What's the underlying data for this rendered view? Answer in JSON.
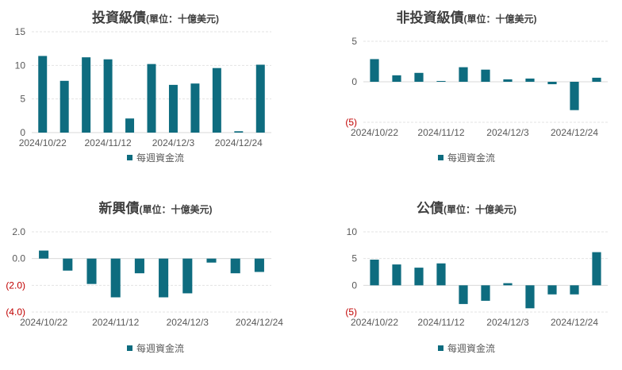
{
  "chart_data": [
    {
      "type": "bar",
      "title": "投資級債",
      "subtitle": "(單位：十億美元)",
      "legend": "每週資金流",
      "color": "#0e6c7f",
      "ylim": [
        0,
        15
      ],
      "yticks": [
        {
          "v": 15,
          "label": "15"
        },
        {
          "v": 10,
          "label": "10"
        },
        {
          "v": 5,
          "label": "5"
        },
        {
          "v": 0,
          "label": "0"
        }
      ],
      "xtick_labels": [
        "2024/10/22",
        "2024/11/12",
        "2024/12/3",
        "2024/12/24"
      ],
      "xtick_positions": [
        0,
        3,
        6,
        9
      ],
      "values": [
        11.4,
        7.7,
        11.2,
        10.9,
        2.1,
        10.2,
        7.1,
        7.3,
        9.6,
        0.2,
        10.1
      ]
    },
    {
      "type": "bar",
      "title": "非投資級債",
      "subtitle": "(單位：十億美元)",
      "legend": "每週資金流",
      "color": "#0e6c7f",
      "ylim": [
        -5,
        5
      ],
      "yticks": [
        {
          "v": 5,
          "label": "5"
        },
        {
          "v": 0,
          "label": "0"
        },
        {
          "v": -5,
          "label": "(5)"
        }
      ],
      "xtick_labels": [
        "2024/10/22",
        "2024/11/12",
        "2024/12/3",
        "2024/12/24"
      ],
      "xtick_positions": [
        0,
        3,
        6,
        9
      ],
      "values": [
        2.8,
        0.8,
        1.1,
        0.1,
        1.8,
        1.5,
        0.3,
        0.4,
        -0.3,
        -3.5,
        0.5
      ]
    },
    {
      "type": "bar",
      "title": "新興債",
      "subtitle": "(單位：十億美元)",
      "legend": "每週資金流",
      "color": "#0e6c7f",
      "ylim": [
        -4,
        2
      ],
      "yticks": [
        {
          "v": 2,
          "label": "2.0"
        },
        {
          "v": 0,
          "label": "0.0"
        },
        {
          "v": -2,
          "label": "(2.0)"
        },
        {
          "v": -4,
          "label": "(4.0)"
        }
      ],
      "xtick_labels": [
        "2024/10/22",
        "2024/11/12",
        "2024/12/3",
        "2024/12/24"
      ],
      "xtick_positions": [
        0,
        3,
        6,
        9
      ],
      "values": [
        0.6,
        -0.9,
        -1.9,
        -2.9,
        -1.1,
        -2.9,
        -2.6,
        -0.3,
        -1.1,
        -1.0
      ]
    },
    {
      "type": "bar",
      "title": "公債",
      "subtitle": "(單位：十億美元)",
      "legend": "每週資金流",
      "color": "#0e6c7f",
      "ylim": [
        -5,
        10
      ],
      "yticks": [
        {
          "v": 10,
          "label": "10"
        },
        {
          "v": 5,
          "label": "5"
        },
        {
          "v": 0,
          "label": "0"
        },
        {
          "v": -5,
          "label": "(5)"
        }
      ],
      "xtick_labels": [
        "2024/10/22",
        "2024/11/12",
        "2024/12/3",
        "2024/12/24"
      ],
      "xtick_positions": [
        0,
        3,
        6,
        9
      ],
      "values": [
        4.8,
        3.9,
        3.3,
        4.1,
        -3.5,
        -2.9,
        0.4,
        -4.3,
        -1.7,
        -1.7,
        6.2
      ]
    }
  ]
}
